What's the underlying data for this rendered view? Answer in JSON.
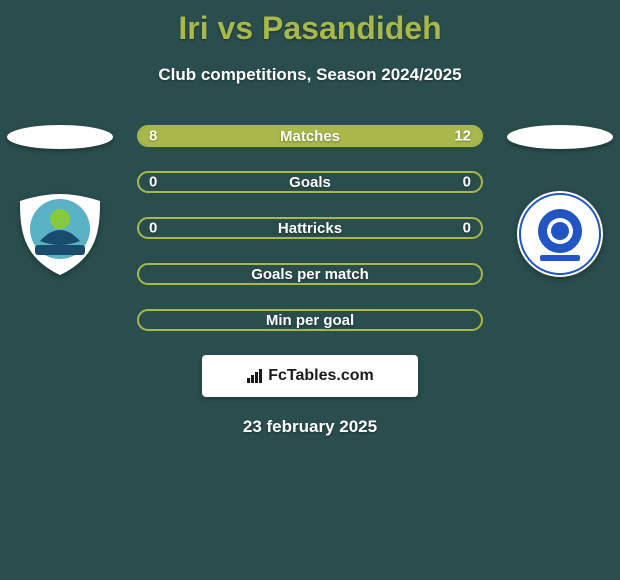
{
  "title": "Iri vs Pasandideh",
  "subtitle": "Club competitions, Season 2024/2025",
  "date": "23 february 2025",
  "branding": "FcTables.com",
  "colors": {
    "background": "#2a4d4d",
    "accent": "#a8b84a",
    "text": "#ffffff",
    "club_left_primary": "#5ab3c4",
    "club_left_secondary": "#86c93d",
    "club_right_primary": "#2354c4",
    "white": "#ffffff"
  },
  "bars": [
    {
      "label": "Matches",
      "left_value": "8",
      "right_value": "12",
      "left_pct": 40,
      "right_pct": 60,
      "has_fill": true,
      "border_color": "#a8b84a",
      "fill_left_color": "#a8b84a",
      "fill_right_color": "#a8b84a"
    },
    {
      "label": "Goals",
      "left_value": "0",
      "right_value": "0",
      "left_pct": 0,
      "right_pct": 0,
      "has_fill": false,
      "border_color": "#a8b84a"
    },
    {
      "label": "Hattricks",
      "left_value": "0",
      "right_value": "0",
      "left_pct": 0,
      "right_pct": 0,
      "has_fill": false,
      "border_color": "#a8b84a"
    },
    {
      "label": "Goals per match",
      "left_value": "",
      "right_value": "",
      "left_pct": 0,
      "right_pct": 0,
      "has_fill": false,
      "border_color": "#a8b84a"
    },
    {
      "label": "Min per goal",
      "left_value": "",
      "right_value": "",
      "left_pct": 0,
      "right_pct": 0,
      "has_fill": false,
      "border_color": "#a8b84a"
    }
  ]
}
